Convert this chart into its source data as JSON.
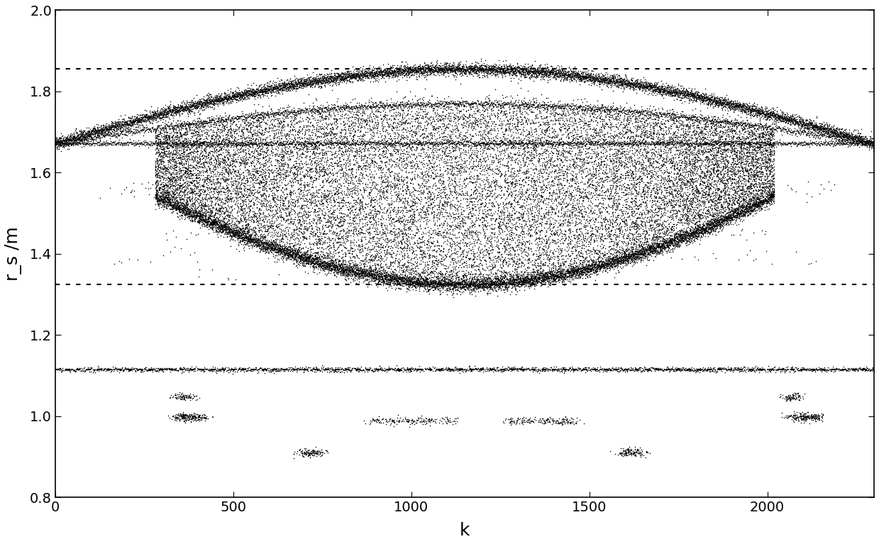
{
  "xlim": [
    0,
    2300
  ],
  "ylim": [
    0.8,
    2.0
  ],
  "xlabel": "k",
  "ylabel": "r_s /m",
  "dotted_lines": [
    1.855,
    1.325,
    1.115
  ],
  "main_line_y": 1.672,
  "N": 2300,
  "dot_color": "#000000",
  "dot_size": 1.2,
  "yticks": [
    0.8,
    1.0,
    1.2,
    1.4,
    1.6,
    1.8,
    2.0
  ],
  "xticks": [
    0,
    500,
    1000,
    1500,
    2000
  ]
}
